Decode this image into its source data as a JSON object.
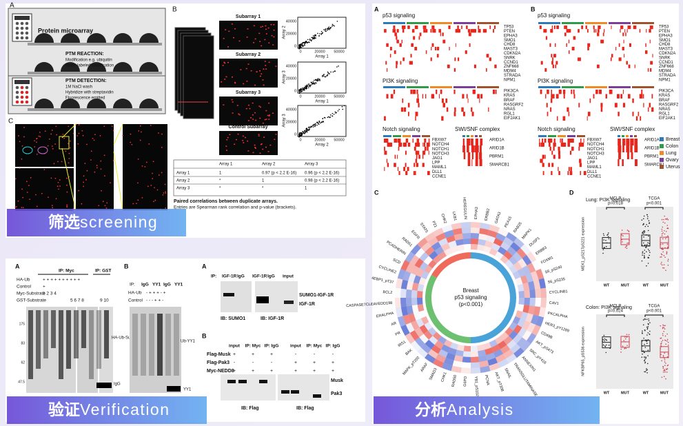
{
  "screening": {
    "banner": {
      "bold": "筛选",
      "text": "screening"
    },
    "panel_a": {
      "letter": "A",
      "title": "Protein microarray",
      "reaction": "PTM REACTION:",
      "reaction_lines": [
        "Modification e.g. ubiquitin",
        "Biotin-labeled modification"
      ],
      "detection": "PTM DETECTION:",
      "detection_lines": [
        "1M NaCl wash",
        "Hybridize with streptavidin",
        "Fluorescence emitted"
      ]
    },
    "panel_b": {
      "letter": "B",
      "subarrays": [
        "Subarray 1",
        "Subarray 2",
        "Subarray 3",
        "Control Subarray"
      ],
      "plots": [
        {
          "ylabel": "Array 2",
          "xlabel": "Array 1",
          "yticks": [
            "0",
            "20000",
            "40000"
          ],
          "xticks": [
            "0",
            "20000",
            "50000"
          ]
        },
        {
          "ylabel": "Array 3",
          "xlabel": "Array 1",
          "yticks": [
            "0",
            "20000",
            "40000"
          ],
          "xticks": [
            "0",
            "20000",
            "50000"
          ]
        },
        {
          "ylabel": "Array 3",
          "xlabel": "Array 2",
          "yticks": [
            "0",
            "20000",
            "40000"
          ],
          "xticks": [
            "0",
            "20000",
            "50000"
          ]
        }
      ],
      "table": {
        "header": [
          "Array 1",
          "Array 2",
          "Array 3"
        ],
        "rows": [
          [
            "Array 1",
            "1",
            "0.97 (p < 2.2 E-16)",
            "0.96 (p < 2.2 E-16)"
          ],
          [
            "Array 2",
            "*",
            "1",
            "0.98 (p < 2.2 E-16)"
          ],
          [
            "Array 3",
            "*",
            "*",
            "1"
          ]
        ]
      },
      "caption": "Paired correlations between duplicate arrays.",
      "note": "Entries are Spearman rank correlation and p-value (brackets)."
    },
    "panel_c": {
      "letter": "C"
    }
  },
  "verification": {
    "banner": {
      "bold": "验证",
      "text": "Verification"
    },
    "blot_a": {
      "letter": "A",
      "ip_myc": "IP: Myc",
      "ip_gst": "IP: GST",
      "rows": [
        {
          "label": "HA-Ub",
          "marks": "+ + + + + + + + + +"
        },
        {
          "label": "Control",
          "marks": "+"
        },
        {
          "label": "Myc-Substrate",
          "marks": "1 2 3 4"
        },
        {
          "label": "GST-Substrate",
          "marks": "5 6 7 8"
        }
      ],
      "lanes_b": "9 10",
      "band_labels": [
        "HA-Ub-Substrate",
        "IgG"
      ],
      "mw": [
        "175",
        "83",
        "62",
        "47.5"
      ]
    },
    "blot_b": {
      "letter": "B",
      "ip": "IP:",
      "lanes": [
        "IgG",
        "YY1",
        "IgG",
        "YY1"
      ],
      "rows": [
        {
          "label": "HA-Ub",
          "marks": "- + + + - +"
        },
        {
          "label": "Control",
          "marks": "- - - + + -"
        }
      ],
      "band_labels": [
        "Ub-YY1",
        "YY1"
      ]
    },
    "blot_c": {
      "letter": "A",
      "ip": "IP:",
      "lanes": [
        "IGF-1R",
        "IgG",
        "IGF-1R",
        "IgG",
        "input"
      ],
      "band_labels": [
        "SUMO1-IGF-1R",
        "IGF-1R"
      ],
      "ib": [
        "IB: SUMO1",
        "IB: IGF-1R"
      ]
    },
    "blot_d": {
      "letter": "B",
      "headers": [
        "input",
        "IP: Myc",
        "IP: IgG",
        "input",
        "IP: Myc",
        "IP: IgG"
      ],
      "rows": [
        {
          "label": "Flag-Musk",
          "marks": [
            "+",
            "+",
            "+",
            "-",
            "-",
            "-"
          ]
        },
        {
          "label": "Flag-Pak3",
          "marks": [
            "-",
            "-",
            "-",
            "+",
            "+",
            "+"
          ]
        },
        {
          "label": "Myc-NEDD8",
          "marks": [
            "+",
            "+",
            "+",
            "+",
            "+",
            "+"
          ]
        }
      ],
      "band_labels": [
        "Musk",
        "Pak3"
      ],
      "ib": [
        "IB: Flag",
        "IB: Flag"
      ]
    }
  },
  "analysis": {
    "banner": {
      "bold": "分析",
      "text": "Analysis"
    },
    "panel_a": {
      "letter": "A"
    },
    "panel_b": {
      "letter": "B"
    },
    "pathways": [
      {
        "title": "p53 signaling",
        "genes": [
          "TP53",
          "PTEN",
          "EPHA3",
          "SMO1",
          "CHD8",
          "MAST3",
          "CDKN2A",
          "SNRK",
          "CCND1",
          "ZNF668",
          "MDM4",
          "STRADA",
          "NPM1"
        ]
      },
      {
        "title": "PI3K signaling",
        "genes": [
          "PIK3CA",
          "KRAS",
          "BRAF",
          "RASGRF2",
          "NRAS",
          "RGL1",
          "EIF2AK1"
        ]
      },
      {
        "title": "Notch signaling",
        "genes": [
          "FBXW7",
          "NOTCH4",
          "NOTCH1",
          "NOTCH3",
          "JAG1",
          "LPP",
          "MAML1",
          "DLL1",
          "CCNE1"
        ]
      },
      {
        "title": "SWI/SNF complex",
        "genes": [
          "ARID1A",
          "ARID1B",
          "PBRM1",
          "SMARCB1"
        ]
      }
    ],
    "legend": [
      {
        "name": "Breast",
        "color": "#2b7bba"
      },
      {
        "name": "Colon",
        "color": "#2e9a4a"
      },
      {
        "name": "Lung",
        "color": "#f08a24"
      },
      {
        "name": "Ovary",
        "color": "#7d3c98"
      },
      {
        "name": "Uterus",
        "color": "#a0522d"
      }
    ],
    "panel_c": {
      "letter": "C",
      "center": [
        "Breast",
        "p53 signaling",
        "(p<0.001)"
      ],
      "labels": [
        "EPHA3",
        "ERBB2",
        "GATA3",
        "PEA15",
        "RAB25",
        "MAPK1",
        "DUSP1",
        "ERBB3",
        "FOXM1",
        "S6_pS240",
        "S6_pS235",
        "CYCLINB1",
        "CAV1",
        "PKCALPHA",
        "HER3_pY1289",
        "CD49B",
        "AKT_pS473",
        "SRC_pY416",
        "ANNEXIN1",
        "TRANSGLUTAMINASE",
        "SNAIL",
        "AKT_pT308",
        "PCNA",
        "YB1_pS102",
        "G6PD",
        "RAD50",
        "CHK1",
        "SMAD3",
        "ARAF",
        "MAPK_pT202",
        "BAK",
        "IRS1",
        "PR",
        "AR",
        "ERALPHA",
        "CASPASE7CLEAVEDD198",
        "BCL2",
        "4EBP1_pT37",
        "CYCLINE2",
        "SCD",
        "PCADHERIN",
        "RAD51",
        "EGFR",
        "STAT5",
        "P21",
        "CHK2",
        "LKB1",
        "HEREGULIN"
      ]
    },
    "panel_d": {
      "letter": "D",
      "plots": [
        {
          "title": "Lung: PI3K signaling",
          "ylabel": "MEK1_pS217pS221 expression",
          "groups": [
            {
              "name": "MCLP",
              "p": "p=0.018"
            },
            {
              "name": "TCGA",
              "p": "p<0.001"
            }
          ],
          "xlabels": [
            "WT",
            "MUT",
            "WT",
            "MUT"
          ]
        },
        {
          "title": "Colon: PI3K signaling",
          "ylabel": "NFKBP65_pS536 expression",
          "groups": [
            {
              "name": "MCLP",
              "p": "p=0.024"
            },
            {
              "name": "TCGA",
              "p": "p<0.001"
            }
          ],
          "xlabels": [
            "WT",
            "MUT",
            "WT",
            "MUT"
          ]
        }
      ]
    }
  }
}
